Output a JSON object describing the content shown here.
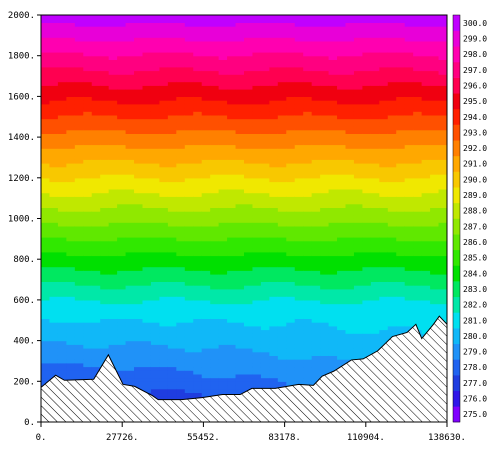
{
  "chart_data": {
    "type": "heatmap",
    "title": "",
    "xlabel": "",
    "ylabel": "",
    "xlim": [
      0,
      138630
    ],
    "ylim": [
      0,
      2000
    ],
    "x_ticks": [
      {
        "value": 0,
        "label": "0."
      },
      {
        "value": 27726,
        "label": "27726."
      },
      {
        "value": 55452,
        "label": "55452."
      },
      {
        "value": 83178,
        "label": "83178."
      },
      {
        "value": 110904,
        "label": "110904."
      },
      {
        "value": 138630,
        "label": "138630."
      }
    ],
    "y_ticks": [
      {
        "value": 0,
        "label": "0."
      },
      {
        "value": 200,
        "label": "200."
      },
      {
        "value": 400,
        "label": "400."
      },
      {
        "value": 600,
        "label": "600."
      },
      {
        "value": 800,
        "label": "800."
      },
      {
        "value": 1000,
        "label": "1000."
      },
      {
        "value": 1200,
        "label": "1200."
      },
      {
        "value": 1400,
        "label": "1400."
      },
      {
        "value": 1600,
        "label": "1600."
      },
      {
        "value": 1800,
        "label": "1800."
      },
      {
        "value": 2000,
        "label": "2000."
      }
    ],
    "colorbar": {
      "levels": [
        "275.0",
        "276.0",
        "277.0",
        "278.0",
        "279.0",
        "280.0",
        "281.0",
        "282.0",
        "283.0",
        "284.0",
        "285.0",
        "286.0",
        "287.0",
        "288.0",
        "289.0",
        "290.0",
        "291.0",
        "292.0",
        "293.0",
        "294.0",
        "295.0",
        "296.0",
        "297.0",
        "298.0",
        "299.0",
        "300.0"
      ],
      "colors": [
        "#8000ff",
        "#2f16e8",
        "#1f3de0",
        "#2063f0",
        "#2092f8",
        "#10b8f8",
        "#00e0f0",
        "#00e8a8",
        "#00e860",
        "#00e000",
        "#30e800",
        "#60e800",
        "#90e800",
        "#c0e800",
        "#f0e800",
        "#f8c800",
        "#ffa800",
        "#ff8000",
        "#ff5000",
        "#ff2000",
        "#f00010",
        "#ff0050",
        "#ff0080",
        "#ff00b0",
        "#e800d8",
        "#c000ff"
      ]
    },
    "terrain": [
      [
        0,
        170
      ],
      [
        5000,
        230
      ],
      [
        8000,
        205
      ],
      [
        18000,
        210
      ],
      [
        23000,
        330
      ],
      [
        28000,
        185
      ],
      [
        32000,
        175
      ],
      [
        38000,
        130
      ],
      [
        40000,
        110
      ],
      [
        48000,
        110
      ],
      [
        55000,
        120
      ],
      [
        62000,
        135
      ],
      [
        68000,
        135
      ],
      [
        72000,
        165
      ],
      [
        80000,
        165
      ],
      [
        88000,
        185
      ],
      [
        93000,
        180
      ],
      [
        96000,
        225
      ],
      [
        100000,
        250
      ],
      [
        106000,
        305
      ],
      [
        110000,
        310
      ],
      [
        115000,
        350
      ],
      [
        120000,
        420
      ],
      [
        125000,
        440
      ],
      [
        128000,
        480
      ],
      [
        130000,
        410
      ],
      [
        134000,
        480
      ],
      [
        136000,
        520
      ],
      [
        138630,
        480
      ]
    ]
  }
}
